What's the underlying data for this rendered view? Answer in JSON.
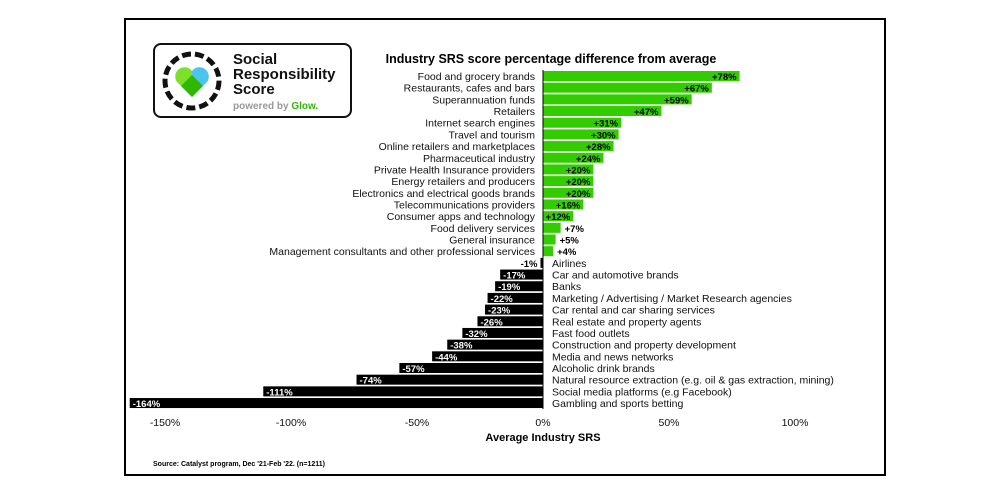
{
  "logo": {
    "line1": "Social",
    "line2": "Responsibility",
    "line3": "Score",
    "powered": "powered by",
    "brand": "Glow."
  },
  "source": "Source: Catalyst program, Dec '21-Feb '22. (n=1211)",
  "colors": {
    "positive": "#33cc00",
    "negative": "#000000"
  },
  "chart_data": {
    "type": "bar",
    "orientation": "horizontal",
    "title": "Industry SRS score percentage difference from average",
    "xlabel": "Average Industry SRS",
    "xlim": [
      -165,
      100
    ],
    "xticks": [
      -150,
      -100,
      -50,
      0,
      50,
      100
    ],
    "xtick_labels": [
      "-150%",
      "-100%",
      "-50%",
      "0%",
      "50%",
      "100%"
    ],
    "categories": [
      "Food and grocery brands",
      "Restaurants, cafes and bars",
      "Superannuation funds",
      "Retailers",
      "Internet search engines",
      "Travel and tourism",
      "Online retailers and marketplaces",
      "Pharmaceutical industry",
      "Private Health Insurance providers",
      "Energy retailers and producers",
      "Electronics and electrical goods brands",
      "Telecommunications providers",
      "Consumer apps and technology",
      "Food delivery services",
      "General insurance",
      "Management consultants and other professional services",
      "Airlines",
      "Car and automotive brands",
      "Banks",
      "Marketing / Advertising / Market Research agencies",
      "Car rental and car sharing services",
      "Real estate and property agents",
      "Fast food outlets",
      "Construction and property development",
      "Media and news networks",
      "Alcoholic drink brands",
      "Natural resource extraction (e.g. oil & gas extraction, mining)",
      "Social media platforms (e.g Facebook)",
      "Gambling and sports betting"
    ],
    "values": [
      78,
      67,
      59,
      47,
      31,
      30,
      28,
      24,
      20,
      20,
      20,
      16,
      12,
      7,
      5,
      4,
      -1,
      -17,
      -19,
      -22,
      -23,
      -26,
      -32,
      -38,
      -44,
      -57,
      -74,
      -111,
      -164
    ],
    "value_labels": [
      "+78%",
      "+67%",
      "+59%",
      "+47%",
      "+31%",
      "+30%",
      "+28%",
      "+24%",
      "+20%",
      "+20%",
      "+20%",
      "+16%",
      "+12%",
      "+7%",
      "+5%",
      "+4%",
      "-1%",
      "-17%",
      "-19%",
      "-22%",
      "-23%",
      "-26%",
      "-32%",
      "-38%",
      "-44%",
      "-57%",
      "-74%",
      "-111%",
      "-164%"
    ]
  }
}
